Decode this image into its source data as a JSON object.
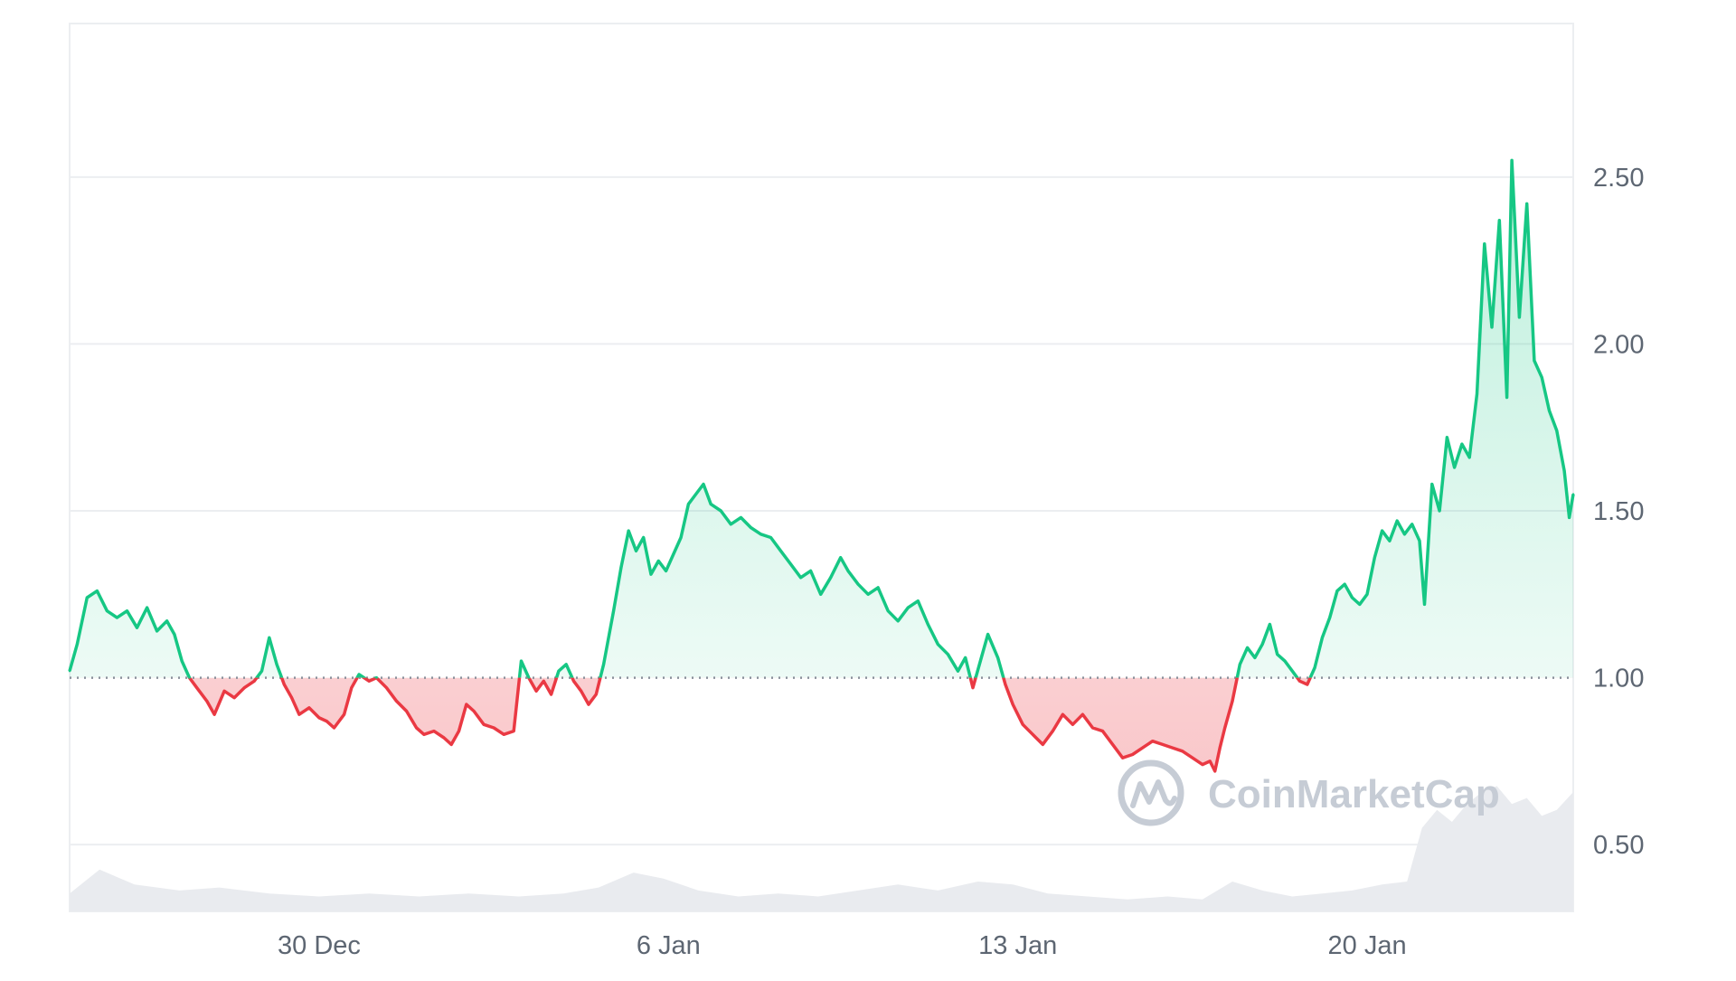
{
  "chart_data": {
    "type": "area",
    "title": "",
    "xlabel": "",
    "ylabel": "",
    "baseline": 1.0,
    "ylim": [
      0.3,
      2.96
    ],
    "y_ticks": [
      {
        "value": 0.5,
        "label": "0.50"
      },
      {
        "value": 1.0,
        "label": "1.00"
      },
      {
        "value": 1.5,
        "label": "1.50"
      },
      {
        "value": 2.0,
        "label": "2.00"
      },
      {
        "value": 2.5,
        "label": "2.50"
      }
    ],
    "x_ticks": [
      {
        "day": 30,
        "label": "30 Dec"
      },
      {
        "day": 37,
        "label": "6 Jan"
      },
      {
        "day": 44,
        "label": "13 Jan"
      },
      {
        "day": 51,
        "label": "20 Jan"
      }
    ],
    "xlim": [
      25.0,
      55.13
    ],
    "colors": {
      "above": "#16c784",
      "below": "#ea3943",
      "above_fill": "#16c784",
      "below_fill": "#ea3943",
      "volume": "#e9ebef",
      "grid": "#eceef1",
      "baseline": "#8a919c"
    },
    "price": [
      [
        25.0,
        1.02
      ],
      [
        25.15,
        1.1
      ],
      [
        25.35,
        1.24
      ],
      [
        25.55,
        1.26
      ],
      [
        25.75,
        1.2
      ],
      [
        25.95,
        1.18
      ],
      [
        26.15,
        1.2
      ],
      [
        26.35,
        1.15
      ],
      [
        26.55,
        1.21
      ],
      [
        26.75,
        1.14
      ],
      [
        26.95,
        1.17
      ],
      [
        27.1,
        1.13
      ],
      [
        27.25,
        1.05
      ],
      [
        27.4,
        1.0
      ],
      [
        27.55,
        0.97
      ],
      [
        27.75,
        0.93
      ],
      [
        27.9,
        0.89
      ],
      [
        28.1,
        0.96
      ],
      [
        28.3,
        0.94
      ],
      [
        28.5,
        0.97
      ],
      [
        28.7,
        0.99
      ],
      [
        28.85,
        1.02
      ],
      [
        29.0,
        1.12
      ],
      [
        29.15,
        1.04
      ],
      [
        29.3,
        0.98
      ],
      [
        29.45,
        0.94
      ],
      [
        29.6,
        0.89
      ],
      [
        29.8,
        0.91
      ],
      [
        30.0,
        0.88
      ],
      [
        30.15,
        0.87
      ],
      [
        30.3,
        0.85
      ],
      [
        30.5,
        0.89
      ],
      [
        30.65,
        0.97
      ],
      [
        30.8,
        1.01
      ],
      [
        31.0,
        0.99
      ],
      [
        31.15,
        1.0
      ],
      [
        31.35,
        0.97
      ],
      [
        31.55,
        0.93
      ],
      [
        31.75,
        0.9
      ],
      [
        31.95,
        0.85
      ],
      [
        32.1,
        0.83
      ],
      [
        32.3,
        0.84
      ],
      [
        32.5,
        0.82
      ],
      [
        32.65,
        0.8
      ],
      [
        32.8,
        0.84
      ],
      [
        32.95,
        0.92
      ],
      [
        33.1,
        0.9
      ],
      [
        33.3,
        0.86
      ],
      [
        33.5,
        0.85
      ],
      [
        33.7,
        0.83
      ],
      [
        33.9,
        0.84
      ],
      [
        34.05,
        1.05
      ],
      [
        34.2,
        1.0
      ],
      [
        34.35,
        0.96
      ],
      [
        34.5,
        0.99
      ],
      [
        34.65,
        0.95
      ],
      [
        34.8,
        1.02
      ],
      [
        34.95,
        1.04
      ],
      [
        35.1,
        0.99
      ],
      [
        35.25,
        0.96
      ],
      [
        35.4,
        0.92
      ],
      [
        35.55,
        0.95
      ],
      [
        35.7,
        1.04
      ],
      [
        35.9,
        1.2
      ],
      [
        36.05,
        1.33
      ],
      [
        36.2,
        1.44
      ],
      [
        36.35,
        1.38
      ],
      [
        36.5,
        1.42
      ],
      [
        36.65,
        1.31
      ],
      [
        36.8,
        1.35
      ],
      [
        36.95,
        1.32
      ],
      [
        37.1,
        1.37
      ],
      [
        37.25,
        1.42
      ],
      [
        37.4,
        1.52
      ],
      [
        37.55,
        1.55
      ],
      [
        37.7,
        1.58
      ],
      [
        37.85,
        1.52
      ],
      [
        38.05,
        1.5
      ],
      [
        38.25,
        1.46
      ],
      [
        38.45,
        1.48
      ],
      [
        38.65,
        1.45
      ],
      [
        38.85,
        1.43
      ],
      [
        39.05,
        1.42
      ],
      [
        39.25,
        1.38
      ],
      [
        39.45,
        1.34
      ],
      [
        39.65,
        1.3
      ],
      [
        39.85,
        1.32
      ],
      [
        40.05,
        1.25
      ],
      [
        40.25,
        1.3
      ],
      [
        40.45,
        1.36
      ],
      [
        40.6,
        1.32
      ],
      [
        40.8,
        1.28
      ],
      [
        41.0,
        1.25
      ],
      [
        41.2,
        1.27
      ],
      [
        41.4,
        1.2
      ],
      [
        41.6,
        1.17
      ],
      [
        41.8,
        1.21
      ],
      [
        42.0,
        1.23
      ],
      [
        42.2,
        1.16
      ],
      [
        42.4,
        1.1
      ],
      [
        42.6,
        1.07
      ],
      [
        42.8,
        1.02
      ],
      [
        42.95,
        1.06
      ],
      [
        43.1,
        0.97
      ],
      [
        43.25,
        1.05
      ],
      [
        43.4,
        1.13
      ],
      [
        43.6,
        1.06
      ],
      [
        43.75,
        0.98
      ],
      [
        43.9,
        0.92
      ],
      [
        44.1,
        0.86
      ],
      [
        44.3,
        0.83
      ],
      [
        44.5,
        0.8
      ],
      [
        44.7,
        0.84
      ],
      [
        44.9,
        0.89
      ],
      [
        45.1,
        0.86
      ],
      [
        45.3,
        0.89
      ],
      [
        45.5,
        0.85
      ],
      [
        45.7,
        0.84
      ],
      [
        45.9,
        0.8
      ],
      [
        46.1,
        0.76
      ],
      [
        46.3,
        0.77
      ],
      [
        46.5,
        0.79
      ],
      [
        46.7,
        0.81
      ],
      [
        46.9,
        0.8
      ],
      [
        47.1,
        0.79
      ],
      [
        47.3,
        0.78
      ],
      [
        47.5,
        0.76
      ],
      [
        47.7,
        0.74
      ],
      [
        47.85,
        0.75
      ],
      [
        47.95,
        0.72
      ],
      [
        48.05,
        0.79
      ],
      [
        48.15,
        0.85
      ],
      [
        48.3,
        0.93
      ],
      [
        48.45,
        1.04
      ],
      [
        48.6,
        1.09
      ],
      [
        48.75,
        1.06
      ],
      [
        48.9,
        1.1
      ],
      [
        49.05,
        1.16
      ],
      [
        49.2,
        1.07
      ],
      [
        49.35,
        1.05
      ],
      [
        49.5,
        1.02
      ],
      [
        49.65,
        0.99
      ],
      [
        49.8,
        0.98
      ],
      [
        49.95,
        1.03
      ],
      [
        50.1,
        1.12
      ],
      [
        50.25,
        1.18
      ],
      [
        50.4,
        1.26
      ],
      [
        50.55,
        1.28
      ],
      [
        50.7,
        1.24
      ],
      [
        50.85,
        1.22
      ],
      [
        51.0,
        1.25
      ],
      [
        51.15,
        1.36
      ],
      [
        51.3,
        1.44
      ],
      [
        51.45,
        1.41
      ],
      [
        51.6,
        1.47
      ],
      [
        51.75,
        1.43
      ],
      [
        51.9,
        1.46
      ],
      [
        52.05,
        1.41
      ],
      [
        52.15,
        1.22
      ],
      [
        52.3,
        1.58
      ],
      [
        52.45,
        1.5
      ],
      [
        52.6,
        1.72
      ],
      [
        52.75,
        1.63
      ],
      [
        52.9,
        1.7
      ],
      [
        53.05,
        1.66
      ],
      [
        53.2,
        1.85
      ],
      [
        53.35,
        2.3
      ],
      [
        53.5,
        2.05
      ],
      [
        53.65,
        2.37
      ],
      [
        53.8,
        1.84
      ],
      [
        53.9,
        2.55
      ],
      [
        54.05,
        2.08
      ],
      [
        54.2,
        2.42
      ],
      [
        54.35,
        1.95
      ],
      [
        54.5,
        1.9
      ],
      [
        54.65,
        1.8
      ],
      [
        54.8,
        1.74
      ],
      [
        54.95,
        1.62
      ],
      [
        55.05,
        1.48
      ],
      [
        55.13,
        1.55
      ]
    ],
    "volume": [
      [
        25.0,
        0.06
      ],
      [
        25.6,
        0.14
      ],
      [
        26.3,
        0.09
      ],
      [
        27.2,
        0.07
      ],
      [
        28.0,
        0.08
      ],
      [
        29.0,
        0.06
      ],
      [
        30.0,
        0.05
      ],
      [
        31.0,
        0.06
      ],
      [
        32.0,
        0.05
      ],
      [
        33.0,
        0.06
      ],
      [
        34.0,
        0.05
      ],
      [
        34.9,
        0.06
      ],
      [
        35.6,
        0.08
      ],
      [
        36.3,
        0.13
      ],
      [
        36.9,
        0.11
      ],
      [
        37.6,
        0.07
      ],
      [
        38.4,
        0.05
      ],
      [
        39.2,
        0.06
      ],
      [
        40.0,
        0.05
      ],
      [
        40.8,
        0.07
      ],
      [
        41.6,
        0.09
      ],
      [
        42.4,
        0.07
      ],
      [
        43.2,
        0.1
      ],
      [
        43.9,
        0.09
      ],
      [
        44.6,
        0.06
      ],
      [
        45.4,
        0.05
      ],
      [
        46.2,
        0.04
      ],
      [
        47.0,
        0.05
      ],
      [
        47.7,
        0.04
      ],
      [
        48.3,
        0.1
      ],
      [
        48.9,
        0.07
      ],
      [
        49.5,
        0.05
      ],
      [
        50.1,
        0.06
      ],
      [
        50.7,
        0.07
      ],
      [
        51.3,
        0.09
      ],
      [
        51.8,
        0.1
      ],
      [
        52.1,
        0.28
      ],
      [
        52.4,
        0.34
      ],
      [
        52.7,
        0.3
      ],
      [
        53.0,
        0.36
      ],
      [
        53.3,
        0.4
      ],
      [
        53.6,
        0.42
      ],
      [
        53.9,
        0.36
      ],
      [
        54.2,
        0.38
      ],
      [
        54.5,
        0.32
      ],
      [
        54.8,
        0.34
      ],
      [
        55.13,
        0.4
      ]
    ]
  },
  "watermark": {
    "text": "CoinMarketCap"
  }
}
